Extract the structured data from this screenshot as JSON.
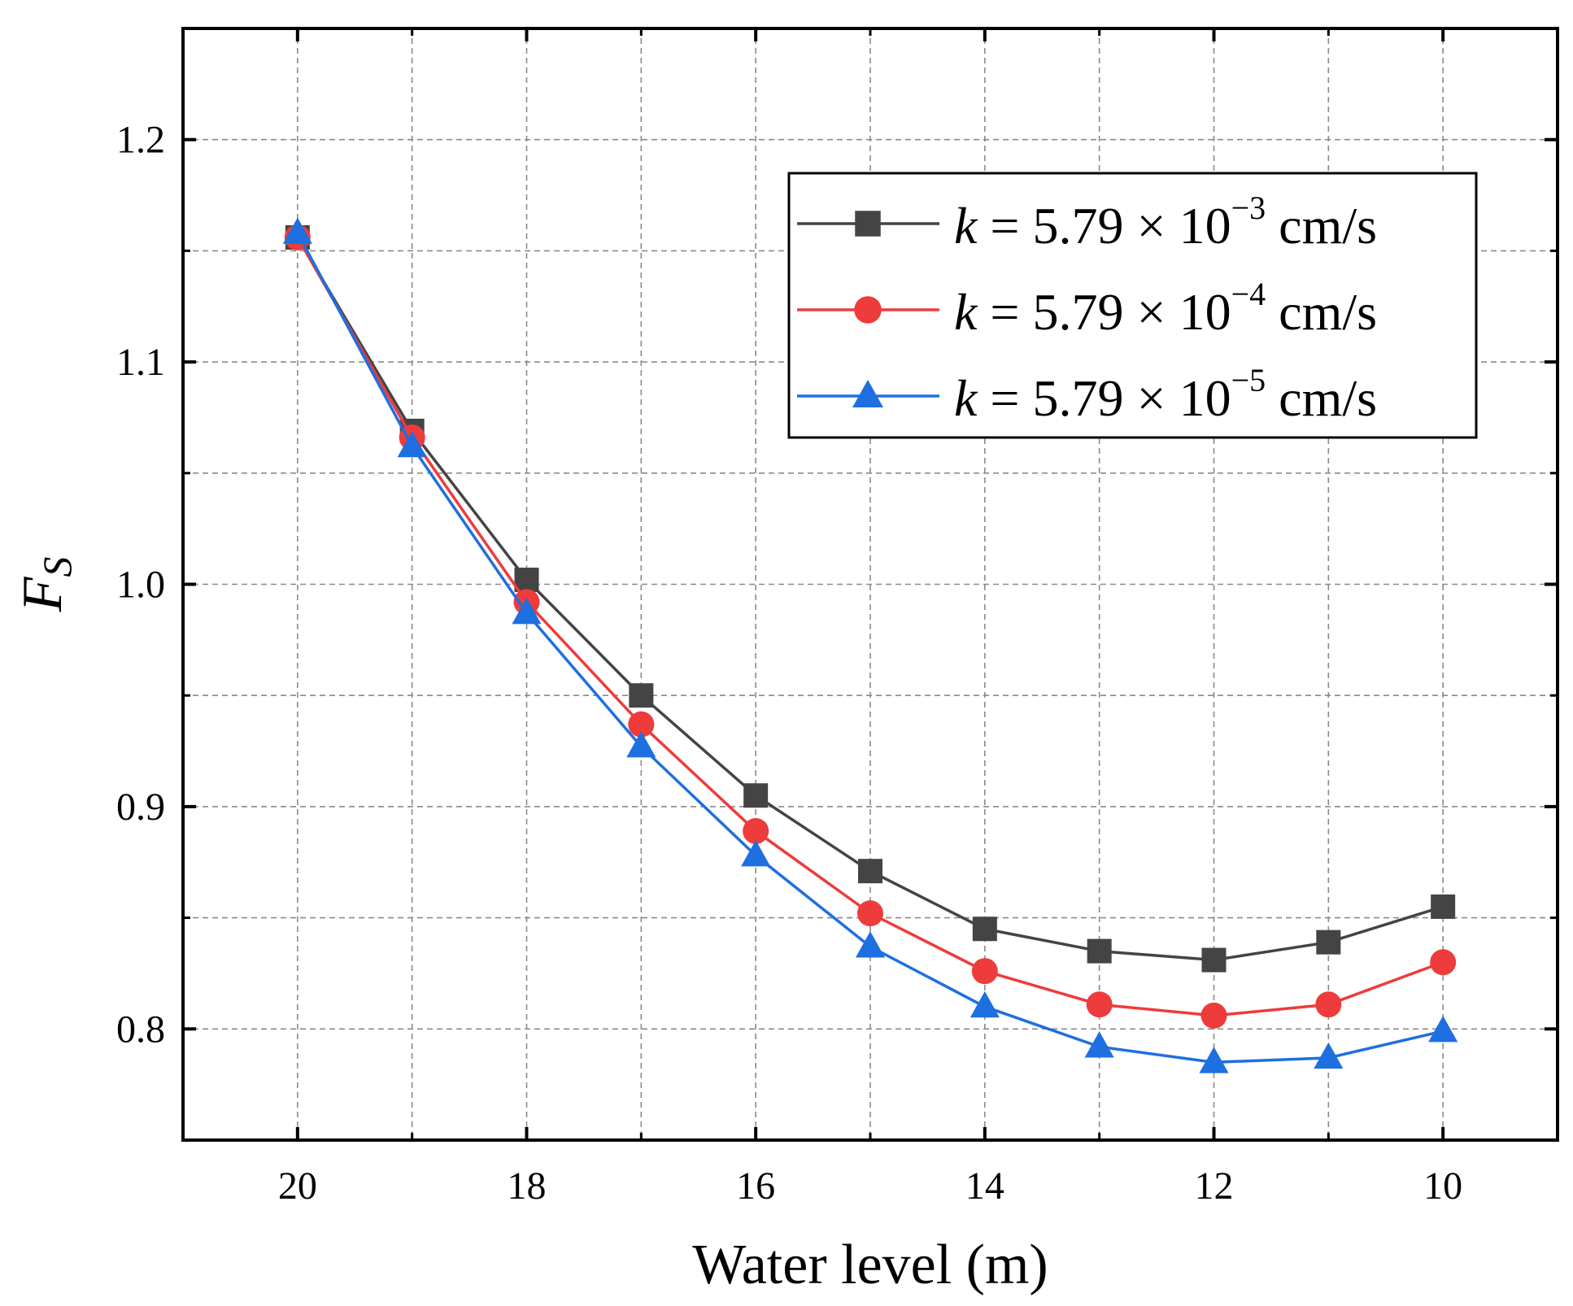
{
  "chart_data": {
    "type": "line",
    "title": "",
    "xlabel": "Water level (m)",
    "ylabel": {
      "main": "F",
      "subscript": "S"
    },
    "xlim": [
      21,
      9
    ],
    "ylim": [
      0.75,
      1.25
    ],
    "x_reversed": true,
    "grid": true,
    "x_ticks": [
      {
        "value": 20,
        "label": "20"
      },
      {
        "value": 18,
        "label": "18"
      },
      {
        "value": 16,
        "label": "16"
      },
      {
        "value": 14,
        "label": "14"
      },
      {
        "value": 12,
        "label": "12"
      },
      {
        "value": 10,
        "label": "10"
      }
    ],
    "x_minor_ticks": [
      19,
      17,
      15,
      13,
      11
    ],
    "y_ticks": [
      {
        "value": 0.8,
        "label": "0.8"
      },
      {
        "value": 0.9,
        "label": "0.9"
      },
      {
        "value": 1.0,
        "label": "1.0"
      },
      {
        "value": 1.1,
        "label": "1.1"
      },
      {
        "value": 1.2,
        "label": "1.2"
      }
    ],
    "y_minor_ticks": [
      0.85,
      0.95,
      1.05,
      1.15
    ],
    "x": [
      20,
      19,
      18,
      17,
      16,
      15,
      14,
      13,
      12,
      11,
      10
    ],
    "legend_position": "top-right",
    "series": [
      {
        "name": "k = 5.79 × 10−3 cm/s",
        "legend": {
          "k": "k",
          "mid": " = 5.79 × 10",
          "exp": "−3",
          "unit": " cm/s"
        },
        "color": "#444444",
        "marker": "square",
        "values": [
          1.156,
          1.069,
          1.002,
          0.95,
          0.905,
          0.871,
          0.845,
          0.835,
          0.831,
          0.839,
          0.855
        ]
      },
      {
        "name": "k = 5.79 × 10−4 cm/s",
        "legend": {
          "k": "k",
          "mid": " = 5.79 × 10",
          "exp": "−4",
          "unit": " cm/s"
        },
        "color": "#ee3b3b",
        "marker": "circle",
        "values": [
          1.156,
          1.066,
          0.992,
          0.937,
          0.889,
          0.852,
          0.826,
          0.811,
          0.806,
          0.811,
          0.83
        ]
      },
      {
        "name": "k = 5.79 × 10−5 cm/s",
        "legend": {
          "k": "k",
          "mid": " = 5.79 × 10",
          "exp": "−5",
          "unit": " cm/s"
        },
        "color": "#1e6fe0",
        "marker": "triangle",
        "values": [
          1.158,
          1.062,
          0.987,
          0.927,
          0.878,
          0.837,
          0.81,
          0.792,
          0.785,
          0.787,
          0.799
        ]
      }
    ]
  }
}
